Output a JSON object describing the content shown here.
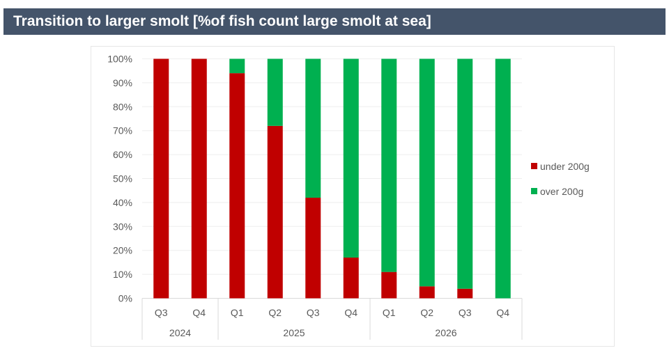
{
  "header": {
    "title": "Transition to larger smolt [%of fish count large smolt at sea]"
  },
  "chart_data": {
    "type": "bar",
    "stacked": true,
    "title": "Transition to larger smolt [%of fish count large smolt at sea]",
    "categories": [
      "Q3",
      "Q4",
      "Q1",
      "Q2",
      "Q3",
      "Q4",
      "Q1",
      "Q2",
      "Q3",
      "Q4"
    ],
    "groups": [
      {
        "label": "2024",
        "count": 2
      },
      {
        "label": "2025",
        "count": 4
      },
      {
        "label": "2026",
        "count": 4
      }
    ],
    "series": [
      {
        "name": "under 200g",
        "color": "#c00000",
        "values": [
          100,
          100,
          94,
          72,
          42,
          17,
          11,
          5,
          4,
          0
        ]
      },
      {
        "name": "over 200g",
        "color": "#00b050",
        "values": [
          0,
          0,
          6,
          28,
          58,
          83,
          89,
          95,
          96,
          100
        ]
      }
    ],
    "ylim": [
      0,
      100
    ],
    "yticks": [
      "0%",
      "10%",
      "20%",
      "30%",
      "40%",
      "50%",
      "60%",
      "70%",
      "80%",
      "90%",
      "100%"
    ],
    "grid": true,
    "legend": "right"
  }
}
